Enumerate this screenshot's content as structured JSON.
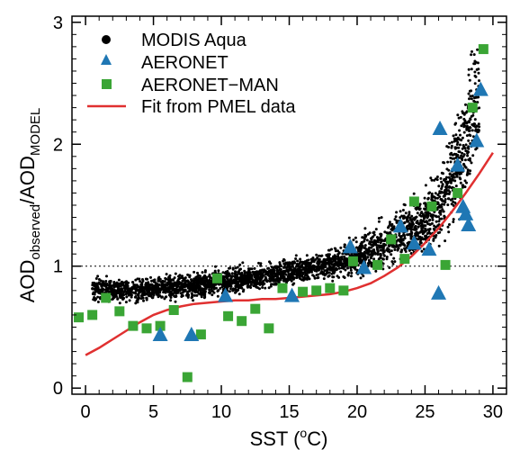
{
  "chart_data": {
    "type": "scatter",
    "title": "",
    "xlabel": "SST (",
    "xlabel_super": "o",
    "xlabel_unit": "C)",
    "ylabel_base": "AOD",
    "ylabel_sub1": "observed",
    "ylabel_mid": "/AOD",
    "ylabel_sub2": "MODEL",
    "xlim": [
      -1,
      31
    ],
    "ylim": [
      -0.05,
      3.05
    ],
    "xticks": [
      0,
      5,
      10,
      15,
      20,
      25,
      30
    ],
    "yticks": [
      0,
      1,
      2,
      3
    ],
    "xtick_labels": [
      "0",
      "5",
      "10",
      "15",
      "20",
      "25",
      "30"
    ],
    "ytick_labels": [
      "0",
      "1",
      "2",
      "3"
    ],
    "reference_line_y": 1,
    "legend_position": "top-left",
    "series": [
      {
        "name": "MODIS Aqua",
        "marker": "dot",
        "color": "#000000",
        "envelope": [
          [
            0.5,
            0.82
          ],
          [
            2,
            0.8
          ],
          [
            4,
            0.8
          ],
          [
            6,
            0.82
          ],
          [
            8,
            0.84
          ],
          [
            10,
            0.87
          ],
          [
            12,
            0.9
          ],
          [
            14,
            0.93
          ],
          [
            16,
            0.97
          ],
          [
            18,
            1.02
          ],
          [
            20,
            1.07
          ],
          [
            21,
            1.12
          ],
          [
            22,
            1.18
          ],
          [
            23,
            1.26
          ],
          [
            24,
            1.3
          ],
          [
            25,
            1.38
          ],
          [
            26,
            1.5
          ],
          [
            27,
            1.75
          ],
          [
            28,
            2.05
          ],
          [
            29,
            2.4
          ]
        ]
      },
      {
        "name": "AERONET",
        "marker": "triangle",
        "color": "#1f77b4",
        "x": [
          5.5,
          7.8,
          10.3,
          15.2,
          19.5,
          20.5,
          23.2,
          24.2,
          25.3,
          26.0,
          26.1,
          27.4,
          27.8,
          28.0,
          28.2,
          28.8,
          29.1
        ],
        "y": [
          0.43,
          0.43,
          0.75,
          0.75,
          1.15,
          0.98,
          1.32,
          1.18,
          1.13,
          0.77,
          2.12,
          1.82,
          1.48,
          1.42,
          1.33,
          2.02,
          2.44
        ]
      },
      {
        "name": "AERONET−MAN",
        "marker": "square",
        "color": "#3aa535",
        "x": [
          -0.5,
          0.5,
          1.5,
          2.5,
          3.5,
          4.5,
          5.5,
          6.5,
          7.5,
          8.5,
          9.7,
          10.5,
          11.5,
          12.5,
          13.5,
          14.5,
          16.0,
          17.0,
          18.0,
          19.0,
          19.7,
          21.5,
          22.5,
          23.5,
          24.2,
          25.5,
          26.5,
          27.4,
          28.5,
          29.3
        ],
        "y": [
          0.58,
          0.6,
          0.74,
          0.63,
          0.51,
          0.49,
          0.51,
          0.64,
          0.09,
          0.44,
          0.9,
          0.59,
          0.55,
          0.65,
          0.49,
          0.82,
          0.79,
          0.8,
          0.82,
          0.8,
          1.04,
          1.01,
          1.22,
          1.06,
          1.53,
          1.49,
          1.01,
          1.6,
          2.3,
          2.78
        ]
      },
      {
        "name": "Fit from PMEL data",
        "marker": "line",
        "color": "#e03030",
        "x": [
          0,
          1,
          2,
          3,
          4,
          5,
          6,
          7,
          8,
          9,
          10,
          11,
          12,
          13,
          14,
          15,
          16,
          17,
          18,
          19,
          20,
          21,
          22,
          23,
          24,
          25,
          26,
          27,
          28,
          29,
          30
        ],
        "y": [
          0.27,
          0.33,
          0.4,
          0.47,
          0.54,
          0.6,
          0.64,
          0.67,
          0.69,
          0.7,
          0.71,
          0.72,
          0.72,
          0.73,
          0.73,
          0.74,
          0.75,
          0.76,
          0.77,
          0.79,
          0.82,
          0.86,
          0.92,
          0.99,
          1.08,
          1.19,
          1.31,
          1.45,
          1.6,
          1.76,
          1.93
        ]
      }
    ]
  }
}
